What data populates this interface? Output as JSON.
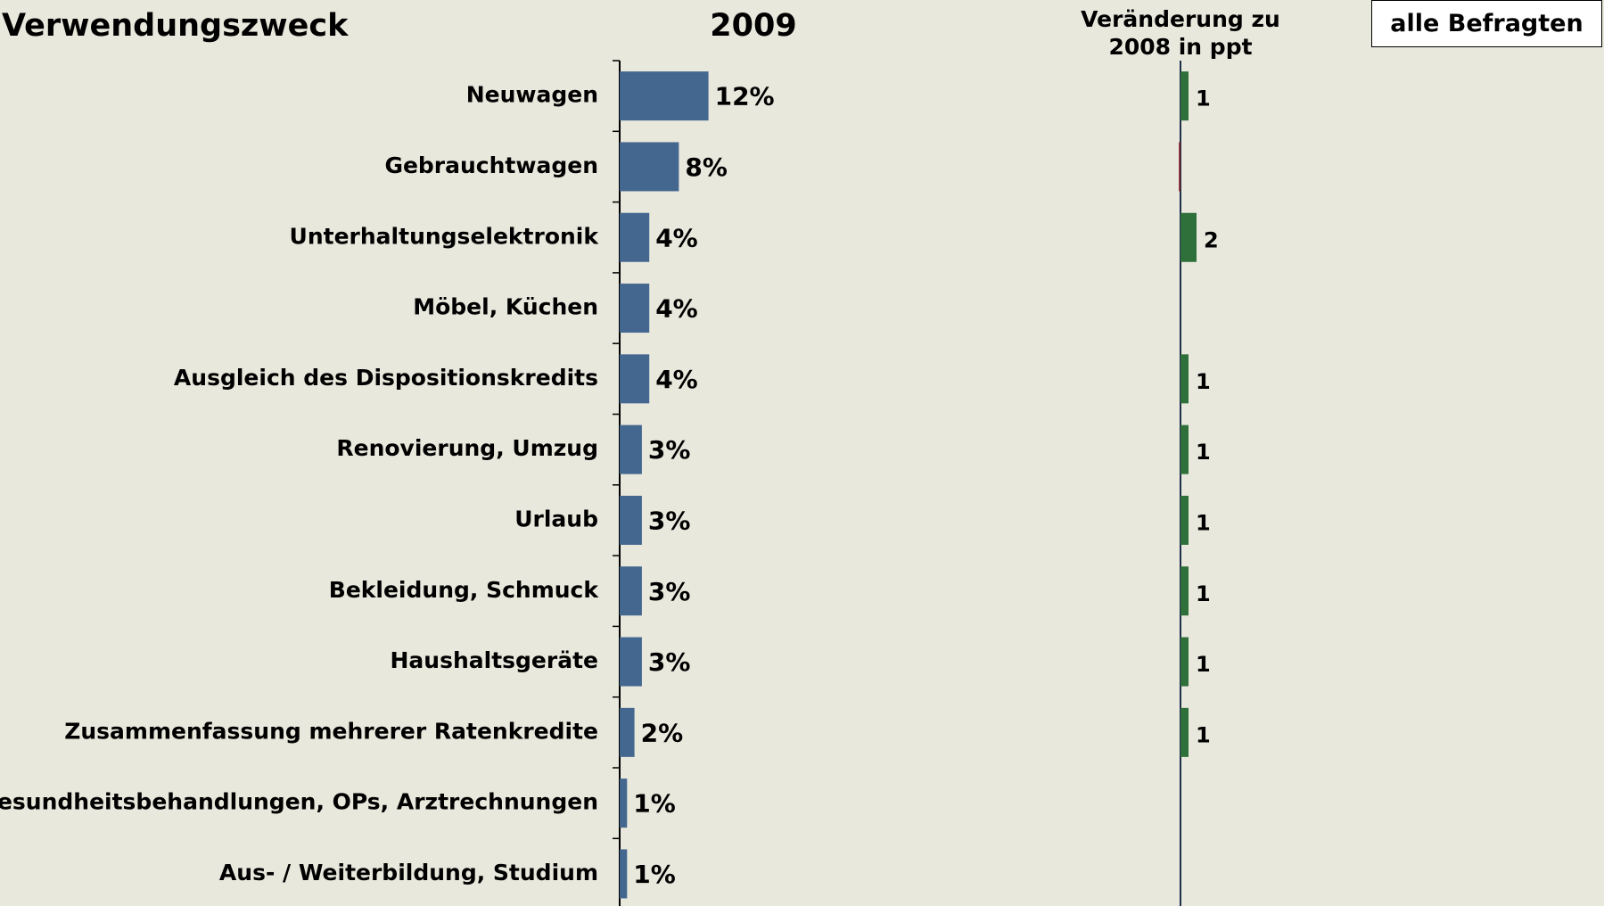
{
  "chart_data": {
    "type": "bar",
    "orientation": "horizontal",
    "title": "Verwendungszweck",
    "annotation": "alle Befragten",
    "categories": [
      "Neuwagen",
      "Gebrauchtwagen",
      "Unterhaltungselektronik",
      "Möbel, Küchen",
      "Ausgleich des Dispositionskredits",
      "Renovierung, Umzug",
      "Urlaub",
      "Bekleidung, Schmuck",
      "Haushaltsgeräte",
      "Zusammenfassung mehrerer Ratenkredite",
      "Gesundheitsbehandlungen, OPs, Arztrechnungen",
      "Aus- / Weiterbildung, Studium"
    ],
    "series": [
      {
        "name": "2009",
        "color": "#44678f",
        "values": [
          12,
          8,
          4,
          4,
          4,
          3,
          3,
          3,
          3,
          2,
          1,
          1
        ],
        "value_labels": [
          "12%",
          "8%",
          "4%",
          "4%",
          "4%",
          "3%",
          "3%",
          "3%",
          "3%",
          "2%",
          "1%",
          "1%"
        ]
      },
      {
        "name": "Veränderung zu 2008 in ppt",
        "axis": "x2",
        "color": "#2e6f3a",
        "negative_color": "#7a1f2a",
        "values": [
          1,
          -0.2,
          2,
          null,
          1,
          1,
          1,
          1,
          1,
          1,
          null,
          null
        ],
        "value_labels": [
          "1",
          null,
          "2",
          null,
          "1",
          "1",
          "1",
          "1",
          "1",
          "1",
          null,
          null
        ]
      }
    ],
    "xlim": [
      0,
      60
    ],
    "x2lim": [
      -10,
      10
    ]
  }
}
